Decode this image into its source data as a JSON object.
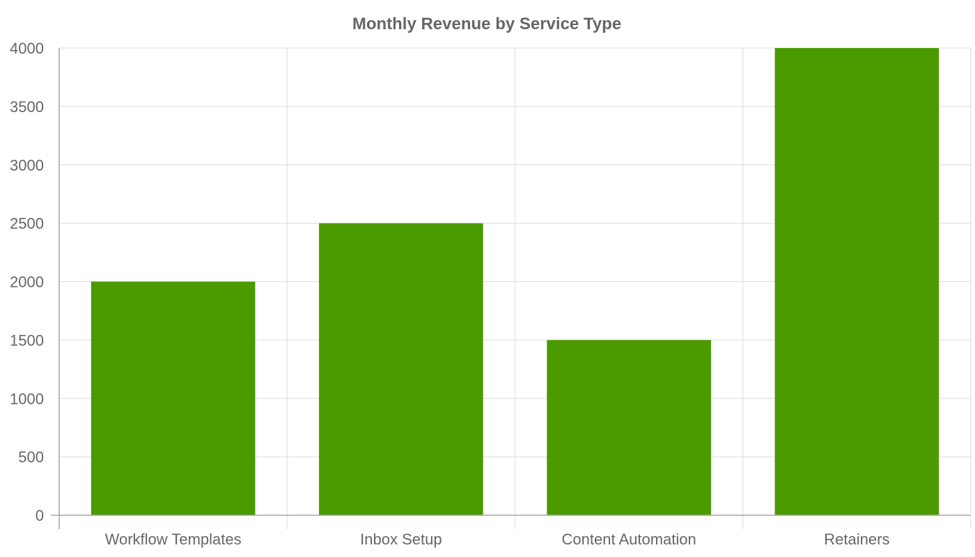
{
  "chart_data": {
    "type": "bar",
    "title": "Monthly Revenue by Service Type",
    "categories": [
      "Workflow Templates",
      "Inbox Setup",
      "Content Automation",
      "Retainers"
    ],
    "values": [
      2000,
      2500,
      1500,
      4000
    ],
    "ylim": [
      0,
      4000
    ],
    "y_ticks": [
      0,
      500,
      1000,
      1500,
      2000,
      2500,
      3000,
      3500,
      4000
    ],
    "grid": true,
    "legend": "none",
    "bar_color": "#4a9a00",
    "grid_color": "#dcdcdc",
    "axis_color": "#a6a6a6",
    "text_color": "#666666"
  }
}
